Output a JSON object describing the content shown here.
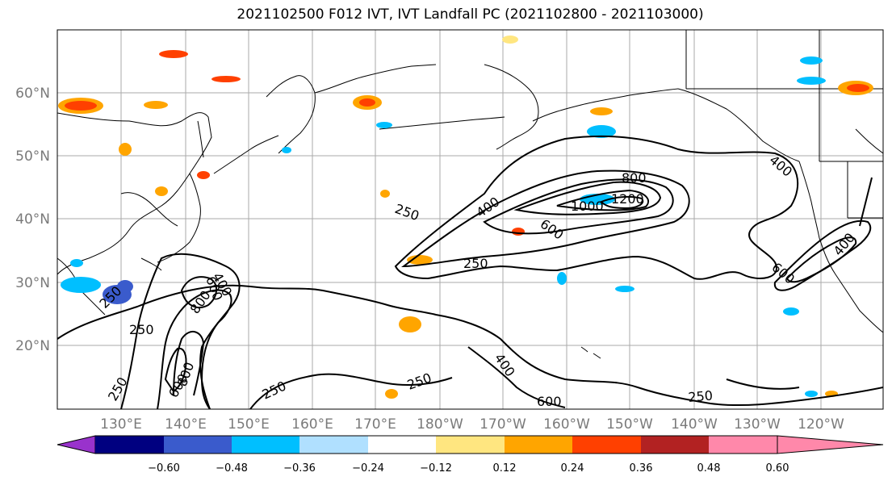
{
  "title": "2021102500 F012 IVT, IVT Landfall PC (2021102800 - 2021103000)",
  "lat_labels": [
    "60°N",
    "50°N",
    "40°N",
    "30°N",
    "20°N"
  ],
  "lon_labels": [
    "130°E",
    "140°E",
    "150°E",
    "160°E",
    "170°E",
    "180°W",
    "170°W",
    "160°W",
    "150°W",
    "140°W",
    "130°W",
    "120°W"
  ],
  "colorbar": {
    "colors": [
      "#9932cc",
      "#000080",
      "#3a5bcc",
      "#00bfff",
      "#b0e0ff",
      "#ffffff",
      "#ffe680",
      "#ffa500",
      "#ff4000",
      "#b22222",
      "#ff88aa"
    ],
    "tick_labels": [
      "−0.60",
      "−0.48",
      "−0.36",
      "−0.24",
      "−0.12",
      "0.12",
      "0.24",
      "0.36",
      "0.48",
      "0.60"
    ]
  },
  "contour_labels": [
    "250",
    "250",
    "250",
    "250",
    "250",
    "250",
    "250",
    "250",
    "400",
    "400",
    "400",
    "400",
    "400",
    "600",
    "600",
    "600",
    "600",
    "600",
    "800",
    "800",
    "800",
    "1000",
    "1200"
  ]
}
